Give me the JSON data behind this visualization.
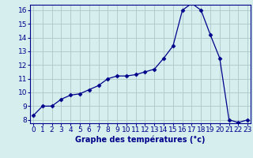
{
  "x": [
    0,
    1,
    2,
    3,
    4,
    5,
    6,
    7,
    8,
    9,
    10,
    11,
    12,
    13,
    14,
    15,
    16,
    17,
    18,
    19,
    20,
    21,
    22,
    23
  ],
  "y": [
    8.3,
    9.0,
    9.0,
    9.5,
    9.8,
    9.9,
    10.2,
    10.5,
    11.0,
    11.2,
    11.2,
    11.3,
    11.5,
    11.7,
    12.5,
    13.4,
    16.0,
    16.5,
    16.0,
    14.2,
    12.5,
    8.0,
    7.8,
    8.0
  ],
  "line_color": "#00008b",
  "marker": "D",
  "marker_size": 2.5,
  "bg_color": "#d6eeee",
  "grid_color": "#b0cccc",
  "xlabel": "Graphe des températures (°c)",
  "xlabel_color": "#00008b",
  "xlabel_fontsize": 7,
  "xtick_labels": [
    "0",
    "1",
    "2",
    "3",
    "4",
    "5",
    "6",
    "7",
    "8",
    "9",
    "10",
    "11",
    "12",
    "13",
    "14",
    "15",
    "16",
    "17",
    "18",
    "19",
    "20",
    "21",
    "22",
    "23"
  ],
  "ytick_min": 8,
  "ytick_max": 16,
  "ytick_step": 1,
  "tick_color": "#00008b",
  "tick_fontsize": 6.5,
  "spine_color": "#00008b",
  "figsize": [
    3.2,
    2.0
  ],
  "dpi": 100
}
